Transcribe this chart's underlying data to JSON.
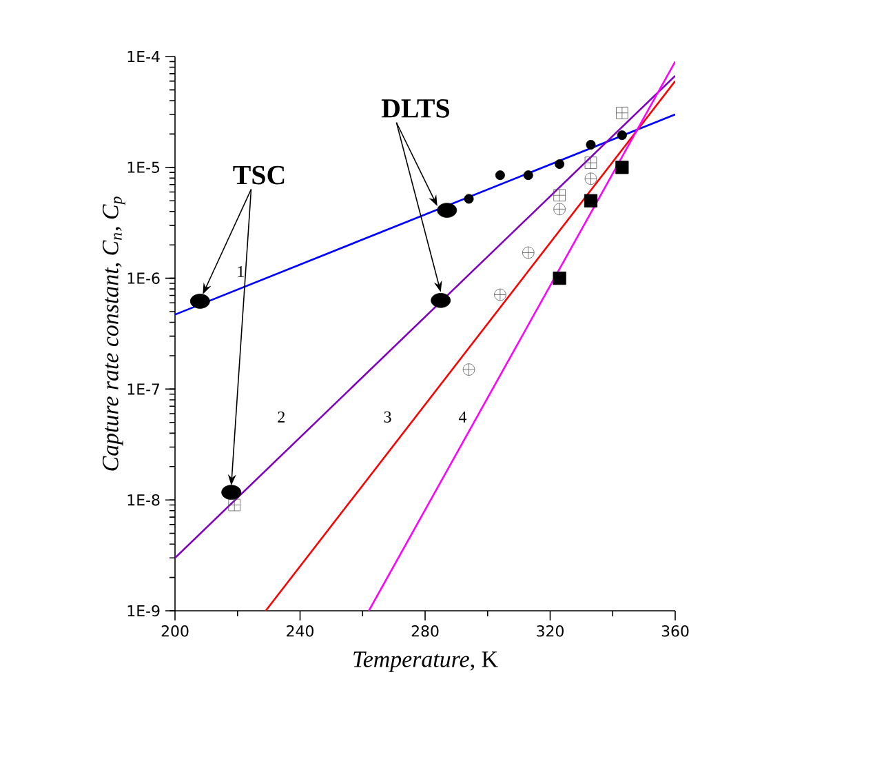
{
  "chart_data": {
    "type": "line",
    "xlabel": "*Temperature*, K",
    "ylabel": "Capture rate constant, C$_{n}$, C$_{p}$",
    "log": "y",
    "xlim": [
      200,
      360
    ],
    "ylim": [
      1e-09,
      0.0001
    ],
    "xticks": [
      200,
      240,
      280,
      320,
      360
    ],
    "yticks": [
      {
        "value": 1e-09,
        "label": "1E-9"
      },
      {
        "value": 1e-08,
        "label": "1E-8"
      },
      {
        "value": 1e-07,
        "label": "1E-7"
      },
      {
        "value": 1e-06,
        "label": "1E-6"
      },
      {
        "value": 1e-05,
        "label": "1E-5"
      },
      {
        "value": 0.0001,
        "label": "1E-4"
      }
    ],
    "grid": false,
    "series": [
      {
        "color": "#0000ff",
        "x": [
          200,
          360
        ],
        "values": [
          4.7e-07,
          3e-05
        ],
        "marker": "none"
      },
      {
        "color": "#8000c0",
        "x": [
          200,
          360
        ],
        "values": [
          3e-09,
          6.7e-05
        ],
        "marker": "none"
      },
      {
        "color": "#ff0000",
        "x": [
          229,
          360
        ],
        "values": [
          1e-09,
          6e-05
        ],
        "marker": "none"
      },
      {
        "color": "#ff00ff",
        "x": [
          262,
          360
        ],
        "values": [
          1e-09,
          9e-05
        ],
        "marker": "none"
      },
      {
        "type": "scatter",
        "color": "#000000",
        "marker": "circle",
        "x": [
          294,
          304,
          313,
          323,
          333,
          343
        ],
        "values": [
          5.2e-06,
          8.5e-06,
          8.5e-06,
          1.07e-05,
          1.6e-05,
          1.95e-05
        ]
      },
      {
        "type": "scatter",
        "color": "#000000",
        "marker": "circle",
        "x": [
          208,
          218,
          287,
          285
        ],
        "values": [
          6.2e-07,
          1.17e-08,
          4.1e-06,
          6.3e-07
        ]
      },
      {
        "type": "scatter",
        "color": "#555555",
        "marker": "cross",
        "x": [
          294,
          304,
          313,
          323,
          333
        ],
        "values": [
          1.5e-07,
          7.1e-07,
          1.7e-06,
          4.2e-06,
          7.9e-06
        ]
      },
      {
        "type": "scatter",
        "color": "#555555",
        "marker": "cross",
        "x": [
          219,
          323,
          333,
          343
        ],
        "values": [
          9e-09,
          5.6e-06,
          1.1e-05,
          3.1e-05
        ]
      },
      {
        "type": "scatter",
        "color": "#000000",
        "marker": "square",
        "x": [
          323,
          333,
          343
        ],
        "values": [
          1e-06,
          5e-06,
          1e-05
        ]
      }
    ],
    "annotations": [
      "1",
      "2",
      "3",
      "4",
      "TSC",
      "DLTS"
    ]
  }
}
